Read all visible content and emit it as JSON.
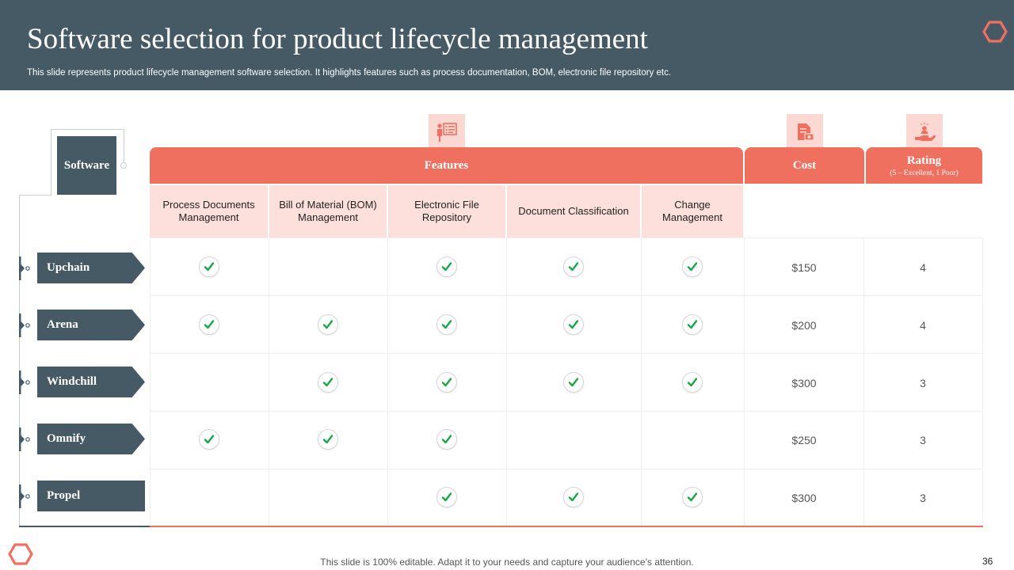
{
  "slide": {
    "title": "Software selection for product lifecycle management",
    "subtitle": "This slide represents product lifecycle management software selection. It highlights features such as process documentation, BOM, electronic file repository etc.",
    "footer": "This slide is 100% editable. Adapt it to your needs and capture your audience’s attention.",
    "page_number": "36"
  },
  "icons": {
    "logo": "hexagon-logo-icon",
    "features": "presentation-board-icon",
    "cost": "document-money-icon",
    "rating": "hand-user-icon",
    "check": "check-icon"
  },
  "colors": {
    "dark": "#465a66",
    "accent": "#f07060",
    "light_accent": "#fde0dc",
    "check": "#18a84a"
  },
  "table": {
    "software_header": "Software",
    "features_header": "Features",
    "cost_header": "Cost",
    "rating_header": "Rating",
    "rating_sub": "(5 – Excellent, 1 Poor)",
    "feature_columns": [
      "Process Documents Management",
      "Bill of Material (BOM) Management",
      "Electronic File Repository",
      "Document Classification",
      "Change Management"
    ],
    "rows": [
      {
        "name": "Upchain",
        "features": [
          true,
          false,
          true,
          true,
          true
        ],
        "cost": "$150",
        "rating": "4"
      },
      {
        "name": "Arena",
        "features": [
          true,
          true,
          true,
          true,
          true
        ],
        "cost": "$200",
        "rating": "4"
      },
      {
        "name": "Windchill",
        "features": [
          false,
          true,
          true,
          true,
          true
        ],
        "cost": "$300",
        "rating": "3"
      },
      {
        "name": "Omnify",
        "features": [
          true,
          true,
          true,
          false,
          false
        ],
        "cost": "$250",
        "rating": "3"
      },
      {
        "name": "Propel",
        "features": [
          false,
          false,
          true,
          true,
          true
        ],
        "cost": "$300",
        "rating": "3"
      }
    ]
  }
}
